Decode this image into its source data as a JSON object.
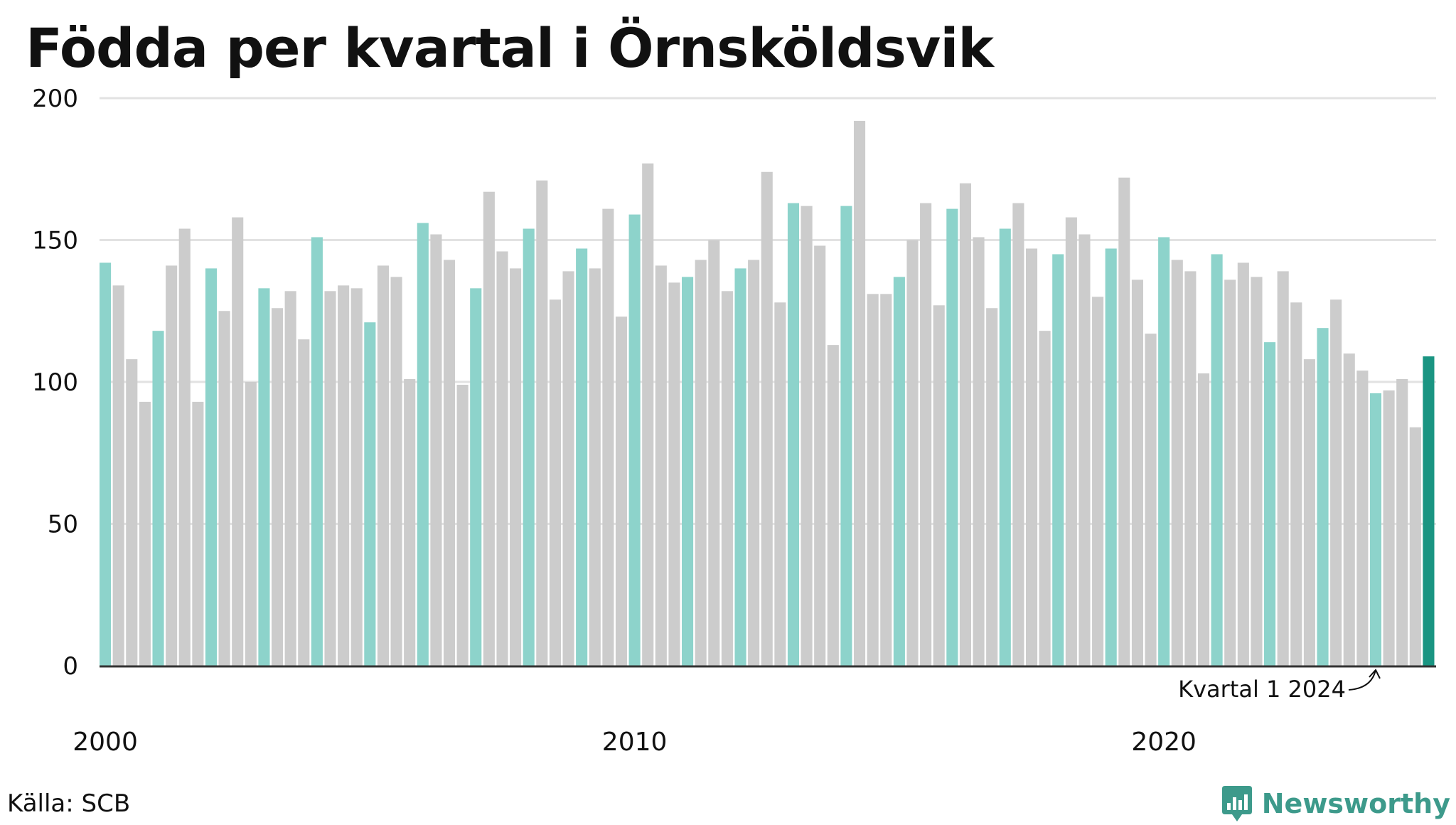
{
  "title": "Födda per kvartal i Örnsköldsvik",
  "source": "Källa: SCB",
  "brand": {
    "name": "Newsworthy",
    "icon": "newsworthy-chart-bubble-icon"
  },
  "colors": {
    "q1": "#8dd3cb",
    "other": "#cccccc",
    "latest": "#1a9582",
    "grid": "#e2e2e2",
    "axis": "#333333",
    "brand": "#3d9a8b"
  },
  "chart_data": {
    "type": "bar",
    "start_year": 2000,
    "start_quarter": 1,
    "highlight": "first quarter of each year in teal, latest quarter in dark teal",
    "values": [
      142,
      134,
      108,
      93,
      118,
      141,
      154,
      93,
      140,
      125,
      158,
      100,
      133,
      126,
      132,
      115,
      151,
      132,
      134,
      133,
      121,
      141,
      137,
      101,
      156,
      152,
      143,
      99,
      133,
      167,
      146,
      140,
      154,
      171,
      129,
      139,
      147,
      140,
      161,
      123,
      159,
      177,
      141,
      135,
      137,
      143,
      150,
      132,
      140,
      143,
      174,
      128,
      163,
      162,
      148,
      113,
      162,
      192,
      131,
      131,
      137,
      150,
      163,
      127,
      161,
      170,
      151,
      126,
      154,
      163,
      147,
      118,
      145,
      158,
      152,
      130,
      147,
      172,
      136,
      117,
      151,
      143,
      139,
      103,
      145,
      136,
      142,
      137,
      114,
      139,
      128,
      108,
      119,
      129,
      110,
      104,
      96,
      97,
      101,
      84,
      109
    ],
    "x_tick_labels": [
      "2000",
      "2010",
      "2020"
    ],
    "y_ticks": [
      0,
      50,
      100,
      150,
      200
    ],
    "ylim": [
      0,
      200
    ],
    "annotation": "Kvartal 1 2024",
    "grid": true
  }
}
